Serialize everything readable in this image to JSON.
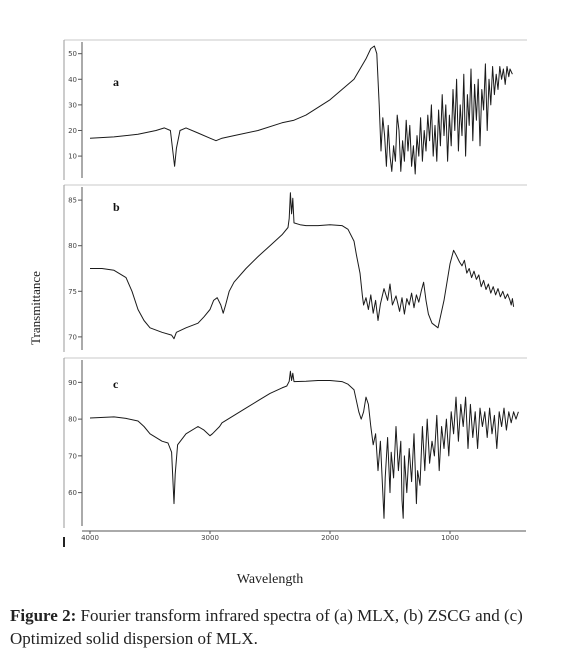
{
  "figure": {
    "ylabel": "Transmittance",
    "xlabel": "Wavelength",
    "caption_label": "Figure 2:",
    "caption_text": " Fourier transform infrared spectra of (a) MLX, (b) ZSCG and (c) Optimized solid dispersion of MLX."
  },
  "chart_data": [
    {
      "type": "line",
      "panel_label": "a",
      "xlim": [
        4000,
        400
      ],
      "ylim": [
        3,
        53
      ],
      "yticks": [
        10,
        20,
        30,
        40,
        50
      ],
      "points": [
        [
          4000,
          17
        ],
        [
          3800,
          17.5
        ],
        [
          3600,
          18.5
        ],
        [
          3450,
          20
        ],
        [
          3380,
          21
        ],
        [
          3330,
          20
        ],
        [
          3310,
          12
        ],
        [
          3295,
          6
        ],
        [
          3280,
          13
        ],
        [
          3250,
          20
        ],
        [
          3200,
          21
        ],
        [
          3100,
          19
        ],
        [
          3000,
          17
        ],
        [
          2950,
          16
        ],
        [
          2900,
          17
        ],
        [
          2800,
          18
        ],
        [
          2600,
          20
        ],
        [
          2400,
          23
        ],
        [
          2300,
          24
        ],
        [
          2200,
          26
        ],
        [
          2100,
          29
        ],
        [
          2000,
          32
        ],
        [
          1900,
          36
        ],
        [
          1800,
          40
        ],
        [
          1750,
          44
        ],
        [
          1700,
          48
        ],
        [
          1660,
          52
        ],
        [
          1630,
          53
        ],
        [
          1610,
          50
        ],
        [
          1590,
          30
        ],
        [
          1575,
          12
        ],
        [
          1560,
          25
        ],
        [
          1545,
          18
        ],
        [
          1530,
          6
        ],
        [
          1515,
          22
        ],
        [
          1500,
          10
        ],
        [
          1485,
          4
        ],
        [
          1470,
          14
        ],
        [
          1455,
          8
        ],
        [
          1440,
          26
        ],
        [
          1425,
          20
        ],
        [
          1410,
          4
        ],
        [
          1395,
          16
        ],
        [
          1380,
          8
        ],
        [
          1365,
          24
        ],
        [
          1350,
          12
        ],
        [
          1335,
          22
        ],
        [
          1320,
          6
        ],
        [
          1305,
          14
        ],
        [
          1290,
          3
        ],
        [
          1275,
          18
        ],
        [
          1260,
          10
        ],
        [
          1245,
          25
        ],
        [
          1230,
          8
        ],
        [
          1215,
          20
        ],
        [
          1200,
          12
        ],
        [
          1185,
          26
        ],
        [
          1170,
          16
        ],
        [
          1155,
          30
        ],
        [
          1140,
          10
        ],
        [
          1125,
          22
        ],
        [
          1110,
          8
        ],
        [
          1095,
          28
        ],
        [
          1080,
          14
        ],
        [
          1065,
          34
        ],
        [
          1050,
          18
        ],
        [
          1035,
          30
        ],
        [
          1020,
          8
        ],
        [
          1005,
          26
        ],
        [
          990,
          14
        ],
        [
          975,
          36
        ],
        [
          960,
          20
        ],
        [
          945,
          40
        ],
        [
          930,
          12
        ],
        [
          915,
          30
        ],
        [
          900,
          18
        ],
        [
          885,
          42
        ],
        [
          870,
          10
        ],
        [
          855,
          34
        ],
        [
          840,
          22
        ],
        [
          825,
          44
        ],
        [
          810,
          16
        ],
        [
          795,
          38
        ],
        [
          780,
          24
        ],
        [
          765,
          40
        ],
        [
          750,
          14
        ],
        [
          735,
          36
        ],
        [
          720,
          28
        ],
        [
          705,
          46
        ],
        [
          690,
          20
        ],
        [
          675,
          40
        ],
        [
          660,
          30
        ],
        [
          645,
          45
        ],
        [
          630,
          34
        ],
        [
          615,
          42
        ],
        [
          600,
          36
        ],
        [
          585,
          45
        ],
        [
          570,
          40
        ],
        [
          555,
          44
        ],
        [
          540,
          38
        ],
        [
          525,
          45
        ],
        [
          510,
          41
        ],
        [
          500,
          44
        ],
        [
          480,
          42
        ]
      ]
    },
    {
      "type": "line",
      "panel_label": "b",
      "xlim": [
        4000,
        400
      ],
      "ylim": [
        69,
        86
      ],
      "yticks": [
        70,
        75,
        80,
        85
      ],
      "points": [
        [
          4000,
          77.5
        ],
        [
          3900,
          77.5
        ],
        [
          3800,
          77.3
        ],
        [
          3700,
          76.5
        ],
        [
          3650,
          75
        ],
        [
          3600,
          73
        ],
        [
          3550,
          71.8
        ],
        [
          3500,
          71
        ],
        [
          3400,
          70.5
        ],
        [
          3320,
          70.2
        ],
        [
          3300,
          69.8
        ],
        [
          3280,
          70.5
        ],
        [
          3200,
          71
        ],
        [
          3100,
          71.5
        ],
        [
          3050,
          72.2
        ],
        [
          3000,
          73
        ],
        [
          2970,
          74
        ],
        [
          2940,
          74.3
        ],
        [
          2910,
          73.5
        ],
        [
          2890,
          72.6
        ],
        [
          2870,
          73.5
        ],
        [
          2840,
          75
        ],
        [
          2800,
          76
        ],
        [
          2700,
          77.5
        ],
        [
          2600,
          78.8
        ],
        [
          2500,
          80
        ],
        [
          2400,
          81.2
        ],
        [
          2350,
          82
        ],
        [
          2340,
          83
        ],
        [
          2330,
          85.8
        ],
        [
          2320,
          83.5
        ],
        [
          2310,
          85.2
        ],
        [
          2300,
          82.5
        ],
        [
          2250,
          82.3
        ],
        [
          2200,
          82.2
        ],
        [
          2100,
          82.2
        ],
        [
          2000,
          82.3
        ],
        [
          1900,
          82.2
        ],
        [
          1850,
          81.8
        ],
        [
          1800,
          80.5
        ],
        [
          1780,
          79
        ],
        [
          1750,
          77
        ],
        [
          1730,
          74.5
        ],
        [
          1720,
          73.5
        ],
        [
          1700,
          74.3
        ],
        [
          1680,
          73
        ],
        [
          1660,
          74.6
        ],
        [
          1640,
          72.6
        ],
        [
          1620,
          74
        ],
        [
          1600,
          71.8
        ],
        [
          1580,
          73.6
        ],
        [
          1550,
          75.3
        ],
        [
          1520,
          74
        ],
        [
          1500,
          75.8
        ],
        [
          1480,
          73.5
        ],
        [
          1450,
          74.5
        ],
        [
          1420,
          72.8
        ],
        [
          1400,
          74.3
        ],
        [
          1380,
          72.5
        ],
        [
          1360,
          74.2
        ],
        [
          1340,
          73.5
        ],
        [
          1320,
          74.8
        ],
        [
          1300,
          73.2
        ],
        [
          1280,
          74.6
        ],
        [
          1260,
          73.8
        ],
        [
          1240,
          75
        ],
        [
          1220,
          76
        ],
        [
          1200,
          74
        ],
        [
          1180,
          72.5
        ],
        [
          1150,
          71.5
        ],
        [
          1100,
          71
        ],
        [
          1050,
          74
        ],
        [
          1000,
          78
        ],
        [
          970,
          79.5
        ],
        [
          950,
          79
        ],
        [
          920,
          78.2
        ],
        [
          900,
          77.8
        ],
        [
          880,
          78.4
        ],
        [
          860,
          77
        ],
        [
          840,
          77.5
        ],
        [
          820,
          76.5
        ],
        [
          800,
          77.2
        ],
        [
          780,
          76.3
        ],
        [
          760,
          76.8
        ],
        [
          740,
          75.5
        ],
        [
          720,
          76.2
        ],
        [
          700,
          75.2
        ],
        [
          680,
          75.8
        ],
        [
          660,
          74.8
        ],
        [
          640,
          75.5
        ],
        [
          620,
          74.6
        ],
        [
          600,
          75.3
        ],
        [
          580,
          74.4
        ],
        [
          560,
          75
        ],
        [
          540,
          74.2
        ],
        [
          520,
          74.7
        ],
        [
          500,
          74
        ],
        [
          490,
          73.5
        ],
        [
          480,
          74.2
        ],
        [
          470,
          73.3
        ]
      ]
    },
    {
      "type": "line",
      "panel_label": "c",
      "xlim": [
        4000,
        400
      ],
      "ylim": [
        52,
        95
      ],
      "yticks": [
        60,
        70,
        80,
        90
      ],
      "points": [
        [
          4000,
          80.3
        ],
        [
          3800,
          80.6
        ],
        [
          3700,
          80.2
        ],
        [
          3600,
          79.5
        ],
        [
          3550,
          78
        ],
        [
          3500,
          76
        ],
        [
          3400,
          74
        ],
        [
          3350,
          73.5
        ],
        [
          3320,
          71
        ],
        [
          3300,
          57
        ],
        [
          3290,
          65
        ],
        [
          3270,
          73
        ],
        [
          3200,
          76
        ],
        [
          3100,
          78
        ],
        [
          3050,
          77
        ],
        [
          3000,
          75.5
        ],
        [
          2980,
          76
        ],
        [
          2920,
          78
        ],
        [
          2900,
          79
        ],
        [
          2800,
          81
        ],
        [
          2700,
          83
        ],
        [
          2600,
          85
        ],
        [
          2500,
          87
        ],
        [
          2400,
          88.5
        ],
        [
          2360,
          89
        ],
        [
          2340,
          90.3
        ],
        [
          2330,
          93
        ],
        [
          2320,
          90.5
        ],
        [
          2310,
          92.5
        ],
        [
          2300,
          90.2
        ],
        [
          2200,
          90.3
        ],
        [
          2100,
          90.5
        ],
        [
          2000,
          90.5
        ],
        [
          1900,
          90.2
        ],
        [
          1850,
          89.5
        ],
        [
          1800,
          88
        ],
        [
          1780,
          85
        ],
        [
          1760,
          82
        ],
        [
          1740,
          80
        ],
        [
          1720,
          82
        ],
        [
          1700,
          86
        ],
        [
          1680,
          84
        ],
        [
          1660,
          78
        ],
        [
          1640,
          73
        ],
        [
          1620,
          76
        ],
        [
          1600,
          66
        ],
        [
          1580,
          74
        ],
        [
          1560,
          60
        ],
        [
          1550,
          53
        ],
        [
          1540,
          64
        ],
        [
          1520,
          75
        ],
        [
          1500,
          60
        ],
        [
          1490,
          71
        ],
        [
          1470,
          64
        ],
        [
          1450,
          78
        ],
        [
          1430,
          66
        ],
        [
          1410,
          74
        ],
        [
          1400,
          58
        ],
        [
          1390,
          53
        ],
        [
          1380,
          70
        ],
        [
          1360,
          60
        ],
        [
          1340,
          72
        ],
        [
          1320,
          63
        ],
        [
          1300,
          76
        ],
        [
          1280,
          57
        ],
        [
          1270,
          66
        ],
        [
          1250,
          62
        ],
        [
          1230,
          78
        ],
        [
          1210,
          66
        ],
        [
          1190,
          80
        ],
        [
          1170,
          68
        ],
        [
          1150,
          74
        ],
        [
          1130,
          70
        ],
        [
          1110,
          81
        ],
        [
          1090,
          66
        ],
        [
          1070,
          78
        ],
        [
          1050,
          72
        ],
        [
          1030,
          80
        ],
        [
          1010,
          70
        ],
        [
          990,
          82
        ],
        [
          970,
          76
        ],
        [
          950,
          86
        ],
        [
          930,
          74
        ],
        [
          910,
          84
        ],
        [
          890,
          78
        ],
        [
          870,
          86
        ],
        [
          850,
          72
        ],
        [
          830,
          84
        ],
        [
          810,
          75
        ],
        [
          790,
          82
        ],
        [
          770,
          72
        ],
        [
          750,
          83
        ],
        [
          730,
          78
        ],
        [
          710,
          82
        ],
        [
          690,
          75
        ],
        [
          670,
          83
        ],
        [
          650,
          76
        ],
        [
          630,
          81
        ],
        [
          610,
          72
        ],
        [
          590,
          82
        ],
        [
          570,
          78
        ],
        [
          550,
          83
        ],
        [
          530,
          77
        ],
        [
          510,
          82
        ],
        [
          490,
          79
        ],
        [
          470,
          82
        ],
        [
          450,
          80
        ],
        [
          430,
          82
        ]
      ]
    }
  ]
}
